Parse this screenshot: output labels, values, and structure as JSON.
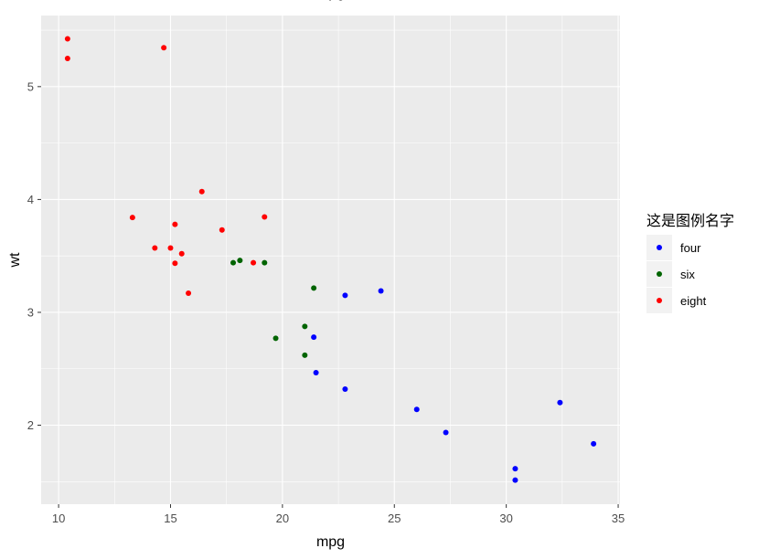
{
  "chart_data": {
    "type": "scatter",
    "title": "mpg",
    "xlabel": "mpg",
    "ylabel": "wt",
    "xlim": [
      9.22,
      35.08
    ],
    "ylim": [
      1.3,
      5.63
    ],
    "xticks": [
      10,
      15,
      20,
      25,
      30,
      35
    ],
    "yticks": [
      2,
      3,
      4,
      5
    ],
    "grid": true,
    "legend_position": "right",
    "legend_title": "这是图例名字",
    "background_color": "#EBEBEB",
    "grid_color": "#FFFFFF",
    "series": [
      {
        "name": "four",
        "color": "#0000FF",
        "points": [
          [
            22.8,
            2.32
          ],
          [
            24.4,
            3.19
          ],
          [
            22.8,
            3.15
          ],
          [
            32.4,
            2.2
          ],
          [
            30.4,
            1.615
          ],
          [
            33.9,
            1.835
          ],
          [
            21.5,
            2.465
          ],
          [
            27.3,
            1.935
          ],
          [
            26.0,
            2.14
          ],
          [
            30.4,
            1.513
          ],
          [
            21.4,
            2.78
          ]
        ]
      },
      {
        "name": "six",
        "color": "#006400",
        "points": [
          [
            21.0,
            2.62
          ],
          [
            21.0,
            2.875
          ],
          [
            21.4,
            3.215
          ],
          [
            18.1,
            3.46
          ],
          [
            19.2,
            3.44
          ],
          [
            17.8,
            3.44
          ],
          [
            19.7,
            2.77
          ]
        ]
      },
      {
        "name": "eight",
        "color": "#FF0000",
        "points": [
          [
            18.7,
            3.44
          ],
          [
            14.3,
            3.57
          ],
          [
            16.4,
            4.07
          ],
          [
            17.3,
            3.73
          ],
          [
            15.2,
            3.78
          ],
          [
            10.4,
            5.25
          ],
          [
            10.4,
            5.424
          ],
          [
            14.7,
            5.345
          ],
          [
            15.5,
            3.52
          ],
          [
            15.2,
            3.435
          ],
          [
            13.3,
            3.84
          ],
          [
            19.2,
            3.845
          ],
          [
            15.8,
            3.17
          ],
          [
            15.0,
            3.57
          ]
        ]
      }
    ]
  }
}
